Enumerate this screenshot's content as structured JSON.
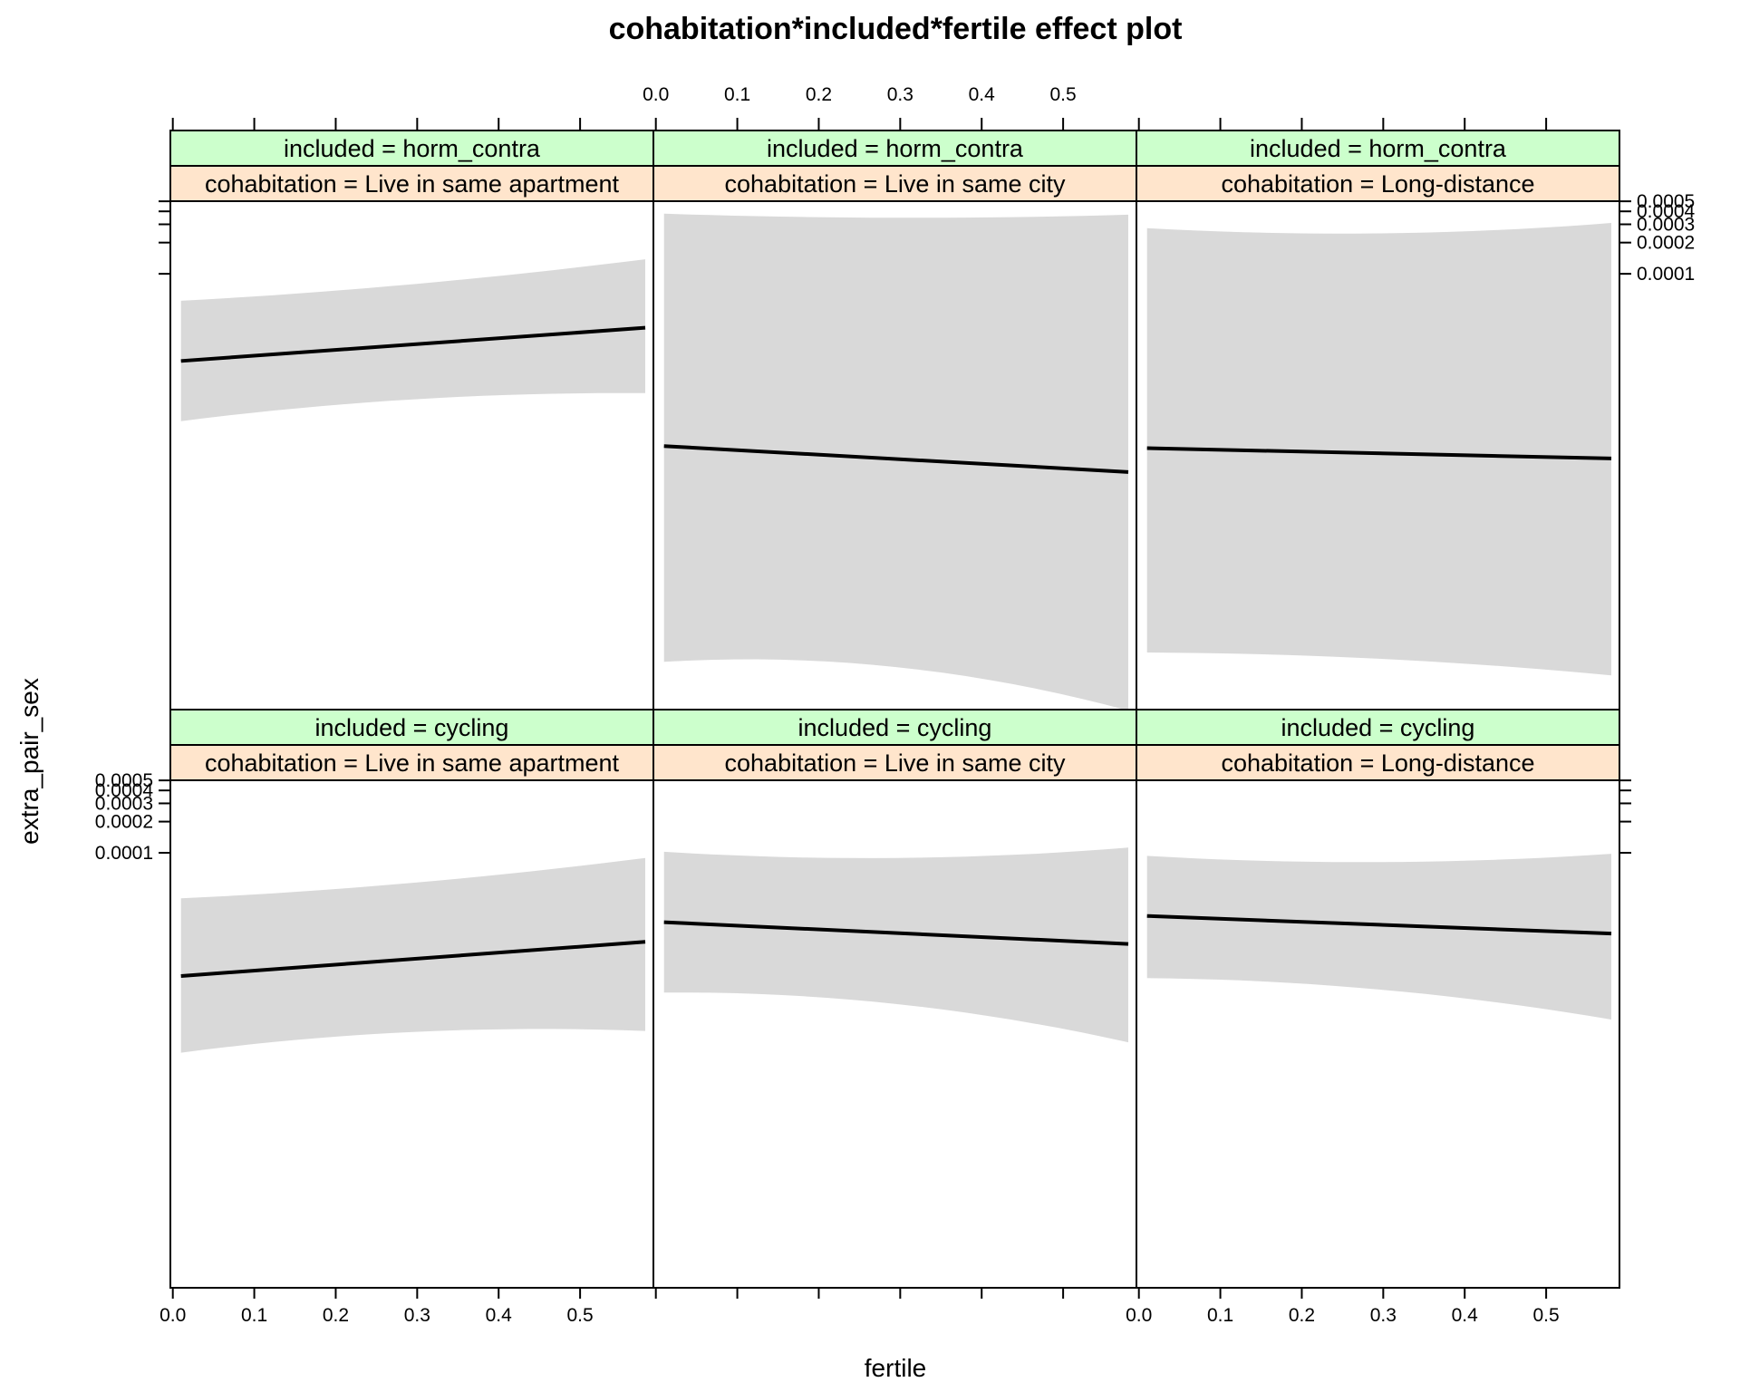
{
  "chart_data": {
    "type": "line",
    "title": "cohabitation*included*fertile effect plot",
    "xlabel": "fertile",
    "ylabel": "extra_pair_sex",
    "x_ticks": [
      "0.0",
      "0.1",
      "0.2",
      "0.3",
      "0.4",
      "0.5"
    ],
    "y_ticks": [
      "0.0001",
      "0.0002",
      "0.0003",
      "0.0004",
      "0.0005"
    ],
    "xlim": [
      -0.003,
      0.59
    ],
    "x_range": [
      0.01,
      0.58
    ],
    "y_scale": "log",
    "ylim_log10": [
      -8.2,
      -3.3
    ],
    "band_color": "#d9d9d9",
    "line_color": "#000000",
    "strip_colors": {
      "included": "#ccffcc",
      "cohabitation": "#ffe5cc"
    },
    "panels": [
      {
        "included": "included = horm_contra",
        "cohabitation": "cohabitation = Live in same apartment",
        "fit": [
          -4.84,
          -4.52
        ],
        "lower": [
          -5.42,
          -5.21,
          -5.15
        ],
        "upper": [
          -4.26,
          -4.1,
          -3.86
        ]
      },
      {
        "included": "included = horm_contra",
        "cohabitation": "cohabitation = Live in same city",
        "fit": [
          -5.66,
          -5.91
        ],
        "lower": [
          -7.74,
          -7.79,
          -8.21
        ],
        "upper": [
          -3.42,
          -3.46,
          -3.43
        ]
      },
      {
        "included": "included = horm_contra",
        "cohabitation": "cohabitation = Long-distance",
        "fit": [
          -5.68,
          -5.78
        ],
        "lower": [
          -7.65,
          -7.71,
          -7.87
        ],
        "upper": [
          -3.56,
          -3.61,
          -3.51
        ]
      },
      {
        "included": "included = cycling",
        "cohabitation": "cohabitation = Live in same apartment",
        "fit": [
          -5.19,
          -4.86
        ],
        "lower": [
          -5.93,
          -5.73,
          -5.72
        ],
        "upper": [
          -4.44,
          -4.29,
          -4.05
        ]
      },
      {
        "included": "included = cycling",
        "cohabitation": "cohabitation = Live in same city",
        "fit": [
          -4.67,
          -4.88
        ],
        "lower": [
          -5.35,
          -5.46,
          -5.83
        ],
        "upper": [
          -3.99,
          -4.05,
          -3.95
        ]
      },
      {
        "included": "included = cycling",
        "cohabitation": "cohabitation = Long-distance",
        "fit": [
          -4.61,
          -4.78
        ],
        "lower": [
          -5.21,
          -5.32,
          -5.61
        ],
        "upper": [
          -4.03,
          -4.09,
          -4.01
        ]
      }
    ]
  }
}
